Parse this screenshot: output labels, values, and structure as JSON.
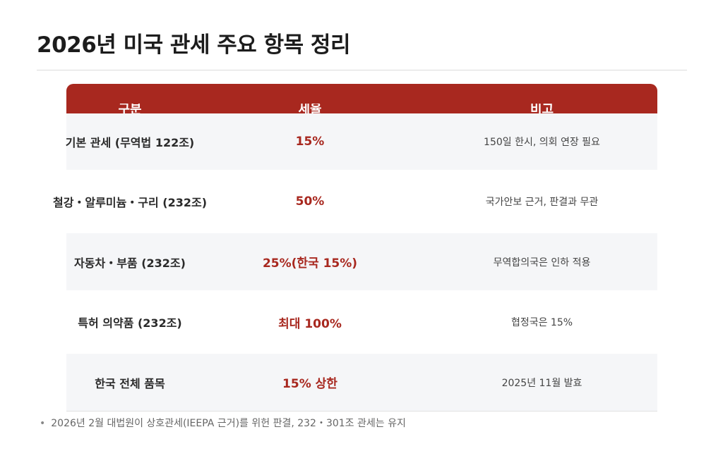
{
  "title": "2026년 미국 관세 주요 항목 정리",
  "table": {
    "headers": [
      "구분",
      "세율",
      "비고"
    ],
    "rows": [
      {
        "category": "기본 관세 (무역법 122조)",
        "rate": "15%",
        "note": "150일 한시, 의회 연장 필요"
      },
      {
        "category": "철강・알루미늄・구리 (232조)",
        "rate": "50%",
        "note": "국가안보 근거, 판결과 무관"
      },
      {
        "category": "자동차・부품 (232조)",
        "rate": "25%(한국 15%)",
        "note": "무역합의국은 인하 적용"
      },
      {
        "category": "특허 의약품 (232조)",
        "rate": "최대 100%",
        "note": "협정국은 15%"
      },
      {
        "category": "한국 전체 품목",
        "rate": "15% 상한",
        "note": "2025년 11월 발효"
      }
    ]
  },
  "footnote": {
    "bullet": "•",
    "text": "2026년 2월 대법원이 상호관세(IEEPA 근거)를 위헌 판결, 232・301조 관세는 유지"
  },
  "colors": {
    "accent": "#a8281f",
    "row_shade": "#f5f6f8"
  }
}
